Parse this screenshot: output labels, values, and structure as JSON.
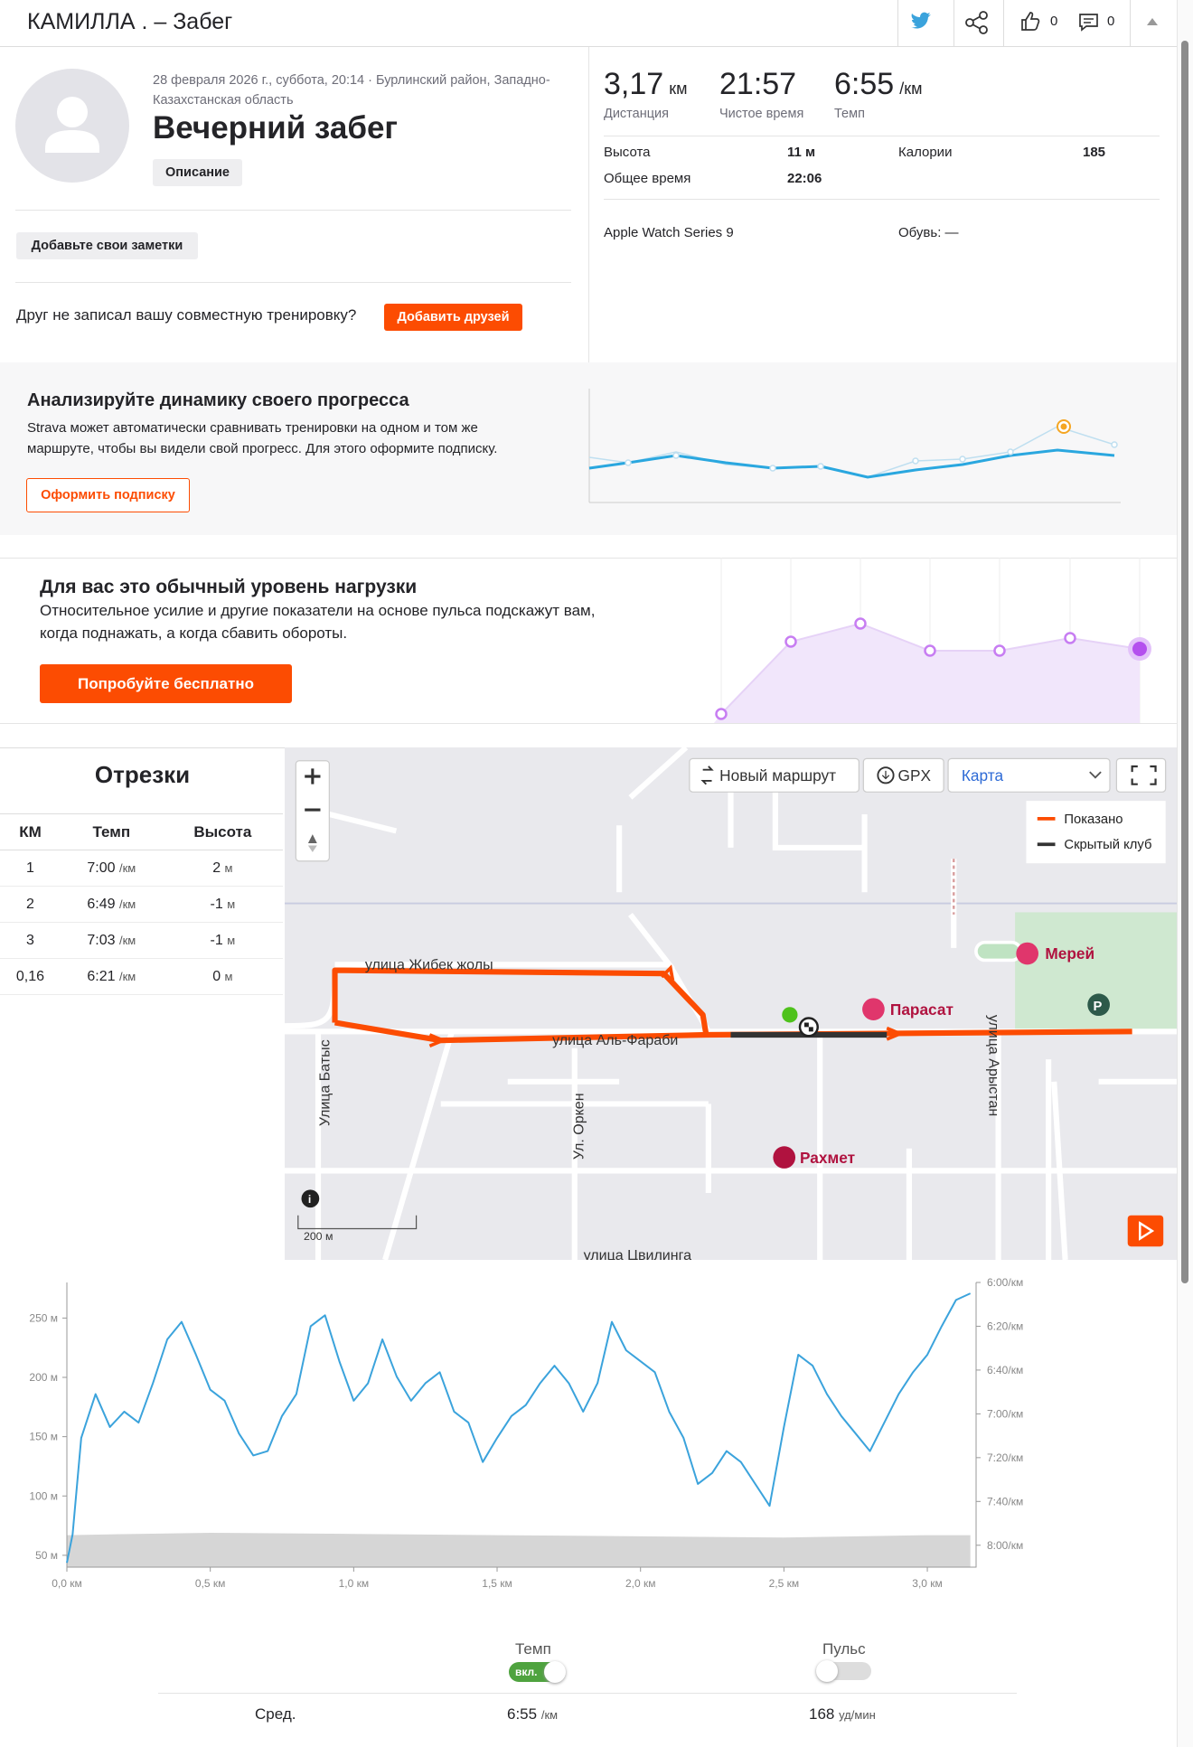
{
  "header": {
    "title": "КАМИЛЛА . – Забег",
    "kudos": "0",
    "comments": "0"
  },
  "activity": {
    "meta": "28 февраля 2026 г., суббота, 20:14 · Бурлинский район, Западно-Казахстанская область",
    "name": "Вечерний забег",
    "description_button": "Описание",
    "notes_button": "Добавьте свои заметки",
    "friend_prompt": "Друг не записал вашу совместную тренировку?",
    "add_friends": "Добавить друзей"
  },
  "stats": {
    "primary": [
      {
        "value": "3,17",
        "unit": "км",
        "label": "Дистанция"
      },
      {
        "value": "21:57",
        "label": "Чистое время"
      },
      {
        "value": "6:55",
        "unit": "/км",
        "label": "Темп"
      }
    ],
    "details": [
      [
        "Высота",
        "11 м",
        "Калории",
        "185"
      ],
      [
        "Общее время",
        "22:06"
      ]
    ],
    "device": "Apple Watch Series 9",
    "shoes": "Обувь: —"
  },
  "promo_progress": {
    "title": "Анализируйте динамику своего прогресса",
    "text": [
      "Strava может автоматически сравнивать тренировки на одном и том же",
      "маршруте, чтобы вы видели свой прогресс. Для этого оформите подписку."
    ],
    "button": "Оформить подписку"
  },
  "promo_effort": {
    "title": "Для вас это обычный уровень нагрузки",
    "text": [
      "Относительное усилие и другие показатели на основе пульса подскажут вам,",
      "когда поднажать, а когда сбавить обороты."
    ],
    "button": "Попробуйте бесплатно"
  },
  "segments": {
    "title": "Отрезки",
    "headers": [
      "КМ",
      "Темп",
      "Высота"
    ],
    "rows": [
      [
        "1",
        "7:00",
        "/км",
        "2",
        "м"
      ],
      [
        "2",
        "6:49",
        "/км",
        "-1",
        "м"
      ],
      [
        "3",
        "7:03",
        "/км",
        "-1",
        "м"
      ],
      [
        "0,16",
        "6:21",
        "/км",
        "0",
        "м"
      ]
    ]
  },
  "map": {
    "buttons": [
      "Новый маршрут",
      "GPX",
      "Карта"
    ],
    "legend": [
      "Показано",
      "Скрытый клуб"
    ],
    "streets": [
      "улица Жибек жолы",
      "улица Аль-Фараби",
      "Улица Батыс",
      "Ул. Оркен",
      "улица Арыстан",
      "улица Цвилинга"
    ],
    "places": [
      "Мерей",
      "Парасат",
      "Рахмет"
    ],
    "scale": "200 м"
  },
  "chart_data": {
    "type": "line",
    "x": [
      0,
      0.02,
      0.05,
      0.1,
      0.15,
      0.2,
      0.25,
      0.3,
      0.35,
      0.4,
      0.45,
      0.5,
      0.55,
      0.6,
      0.65,
      0.7,
      0.75,
      0.8,
      0.85,
      0.9,
      0.95,
      1.0,
      1.05,
      1.1,
      1.15,
      1.2,
      1.25,
      1.3,
      1.35,
      1.4,
      1.45,
      1.5,
      1.55,
      1.6,
      1.65,
      1.7,
      1.75,
      1.8,
      1.85,
      1.9,
      1.95,
      2.0,
      2.05,
      2.1,
      2.15,
      2.2,
      2.25,
      2.3,
      2.35,
      2.4,
      2.45,
      2.5,
      2.55,
      2.6,
      2.65,
      2.7,
      2.75,
      2.8,
      2.85,
      2.9,
      2.95,
      3.0,
      3.05,
      3.1,
      3.15
    ],
    "series": [
      {
        "color": "#3ba3dc",
        "axis": "y2",
        "values": [
          488,
          475,
          431,
          411,
          426,
          419,
          424,
          406,
          386,
          378,
          393,
          409,
          414,
          429,
          439,
          437,
          421,
          411,
          380,
          375,
          396,
          414,
          406,
          386,
          403,
          414,
          406,
          401,
          419,
          424,
          442,
          431,
          421,
          416,
          406,
          398,
          406,
          419,
          406,
          378,
          391,
          396,
          401,
          419,
          431,
          452,
          447,
          437,
          442,
          452,
          462,
          426,
          393,
          398,
          411,
          421,
          429,
          437,
          424,
          411,
          401,
          393,
          380,
          368,
          365
        ]
      }
    ],
    "elevation": {
      "color": "#d6d6d6",
      "x": [
        0,
        0.5,
        1.0,
        1.5,
        2.0,
        2.5,
        3.0,
        3.15
      ],
      "values": [
        67,
        69,
        68,
        67,
        66,
        65,
        67,
        67
      ]
    },
    "xlim": [
      0,
      3.17
    ],
    "xticks": [
      {
        "value": 0,
        "label": "0,0 км"
      },
      {
        "value": 0.5,
        "label": "0,5 км"
      },
      {
        "value": 1,
        "label": "1,0 км"
      },
      {
        "value": 1.5,
        "label": "1,5 км"
      },
      {
        "value": 2,
        "label": "2,0 км"
      },
      {
        "value": 2.5,
        "label": "2,5 км"
      },
      {
        "value": 3,
        "label": "3,0 км"
      }
    ],
    "ylim": [
      40,
      280
    ],
    "yticks": [
      {
        "value": 50,
        "label": "50 м"
      },
      {
        "value": 100,
        "label": "100 м"
      },
      {
        "value": 150,
        "label": "150 м"
      },
      {
        "value": 200,
        "label": "200 м"
      },
      {
        "value": 250,
        "label": "250 м"
      }
    ],
    "y2lim": [
      490,
      360
    ],
    "y2ticks": [
      {
        "value": 360,
        "label": "6:00/км"
      },
      {
        "value": 380,
        "label": "6:20/км"
      },
      {
        "value": 400,
        "label": "6:40/км"
      },
      {
        "value": 420,
        "label": "7:00/км"
      },
      {
        "value": 440,
        "label": "7:20/км"
      },
      {
        "value": 460,
        "label": "7:40/км"
      },
      {
        "value": 480,
        "label": "8:00/км"
      }
    ],
    "grid": false
  },
  "summary": {
    "toggles": [
      {
        "label": "Темп",
        "state": "вкл."
      },
      {
        "label": "Пульс"
      }
    ],
    "avg_label": "Сред.",
    "avg_pace": "6:55",
    "avg_pace_unit": "/км",
    "avg_hr": "168",
    "avg_hr_unit": "уд/мин"
  }
}
